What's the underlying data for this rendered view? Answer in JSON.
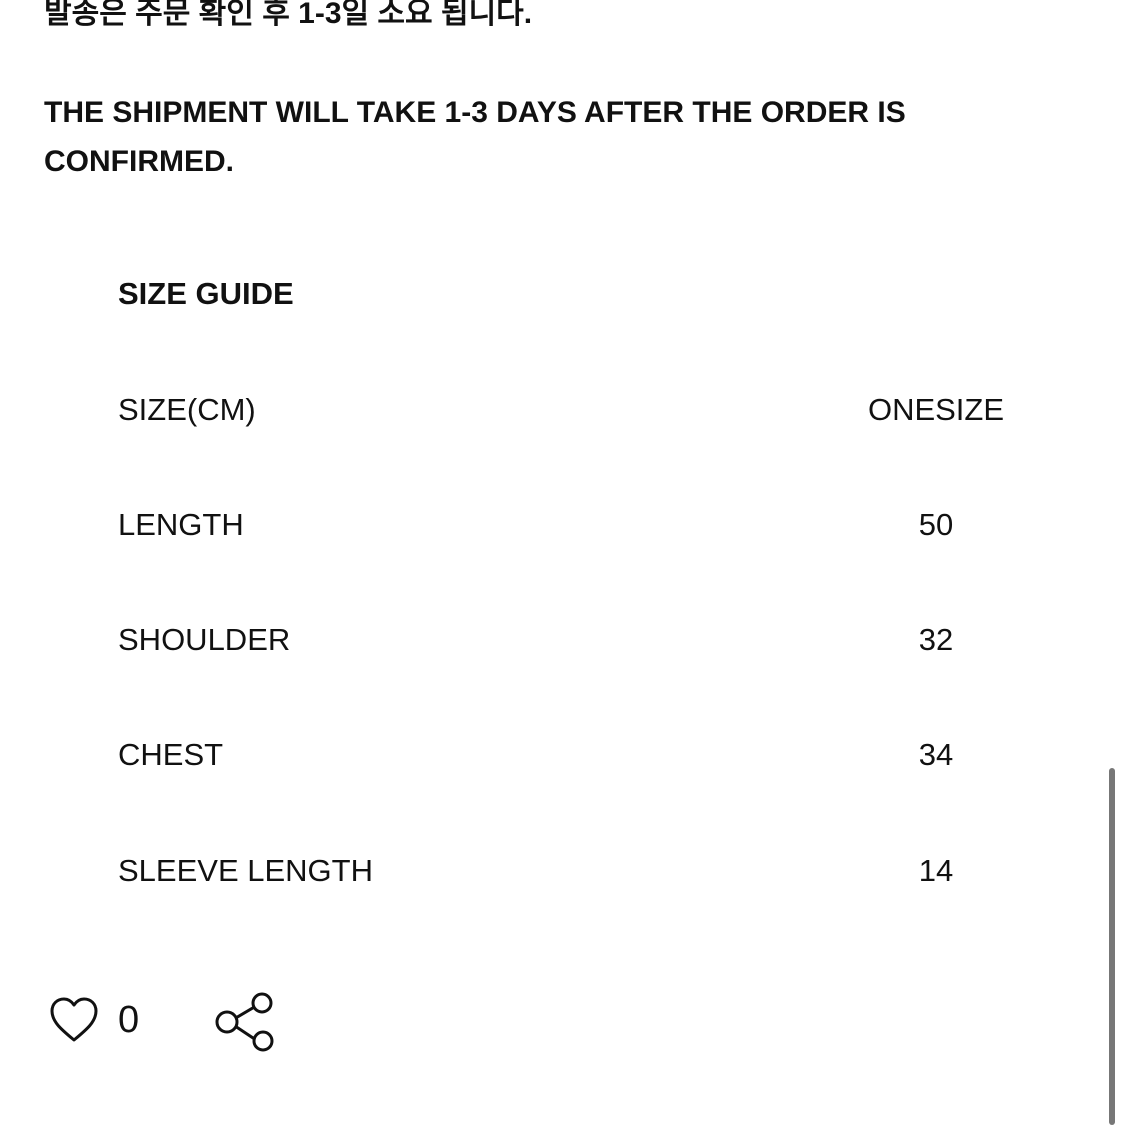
{
  "notice": {
    "korean": "발송은 주문 확인 후  1-3일 소요 됩니다.",
    "english": "THE SHIPMENT WILL TAKE 1-3 DAYS AFTER THE ORDER IS CONFIRMED."
  },
  "size_guide": {
    "title": "SIZE GUIDE",
    "rows": [
      {
        "label": "SIZE(CM)",
        "value": "ONESIZE"
      },
      {
        "label": "LENGTH",
        "value": "50"
      },
      {
        "label": "SHOULDER",
        "value": "32"
      },
      {
        "label": "CHEST",
        "value": "34"
      },
      {
        "label": "SLEEVE LENGTH",
        "value": "14"
      }
    ]
  },
  "actions": {
    "like_icon": "heart-outline-icon",
    "like_count": "0",
    "share_icon": "share-icon"
  }
}
